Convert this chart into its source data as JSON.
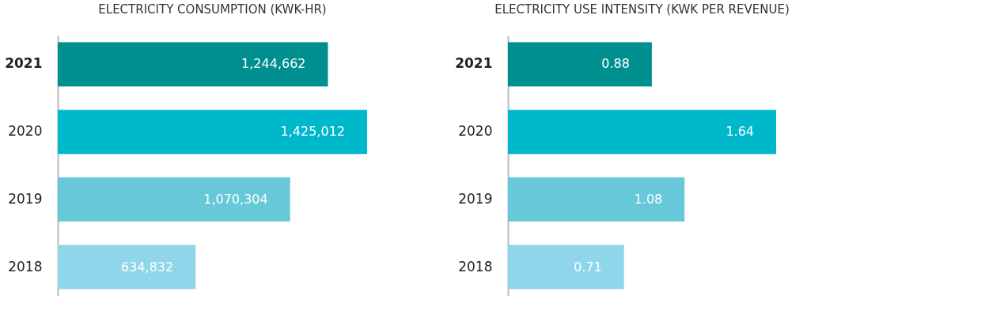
{
  "chart_data": [
    {
      "type": "bar",
      "orientation": "horizontal",
      "title": "ELECTRICITY CONSUMPTION (KWK-HR)",
      "categories": [
        "2021",
        "2020",
        "2019",
        "2018"
      ],
      "values": [
        1244662,
        1425012,
        1070304,
        634832
      ],
      "value_labels": [
        "1,244,662",
        "1,425,012",
        "1,070,304",
        "634,832"
      ],
      "colors": [
        "#008f8f",
        "#00b8cc",
        "#66c8d8",
        "#8fd6ea"
      ],
      "grid": false,
      "legend": false
    },
    {
      "type": "bar",
      "orientation": "horizontal",
      "title": "ELECTRICITY USE INTENSITY (KWK PER REVENUE)",
      "categories": [
        "2021",
        "2020",
        "2019",
        "2018"
      ],
      "values": [
        0.88,
        1.64,
        1.08,
        0.71
      ],
      "colors": [
        "#008f8f",
        "#00b8cc",
        "#66c8d8",
        "#8fd6ea"
      ],
      "data_labels": true,
      "grid": false,
      "legend": false
    }
  ]
}
